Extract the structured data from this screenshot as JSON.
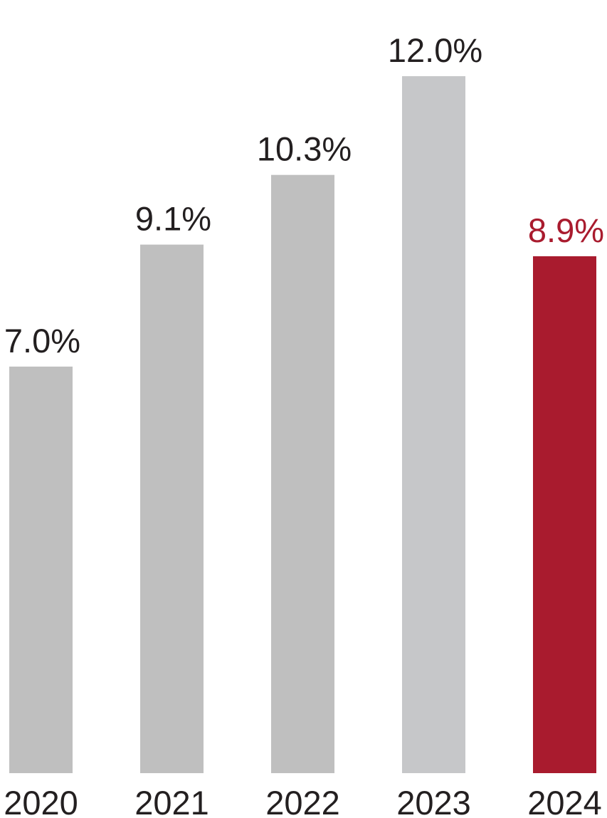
{
  "chart_data": {
    "type": "bar",
    "categories": [
      "2020",
      "2021",
      "2022",
      "2023",
      "2024"
    ],
    "values": [
      7.0,
      9.1,
      10.3,
      12.0,
      8.9
    ],
    "value_labels": [
      "7.0%",
      "9.1%",
      "10.3%",
      "12.0%",
      "8.9%"
    ],
    "colors": [
      "#bfbfbf",
      "#bfbfbf",
      "#bfbfbf",
      "#c6c7c9",
      "#a91b2e"
    ],
    "value_label_colors": [
      "#231f20",
      "#231f20",
      "#231f20",
      "#231f20",
      "#a91b2e"
    ],
    "ylim": [
      0,
      12
    ]
  }
}
